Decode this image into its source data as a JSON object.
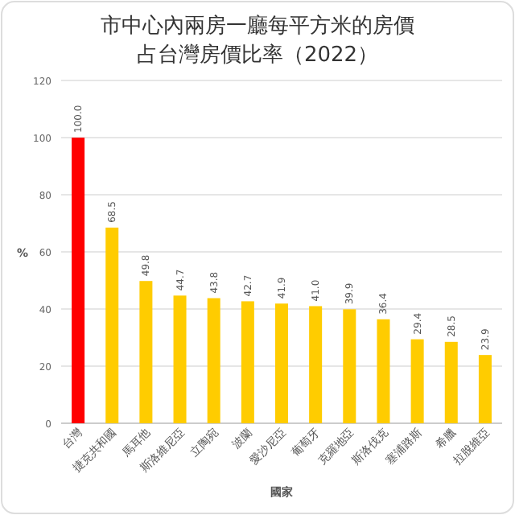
{
  "chart_data": {
    "type": "bar",
    "title": "市中心內兩房一廳每平方米的房價占台灣房價比率（2022）",
    "xlabel": "國家",
    "ylabel": "%",
    "categories": [
      "台灣",
      "捷克共和國",
      "馬耳他",
      "斯洛維尼亞",
      "立陶宛",
      "波蘭",
      "愛沙尼亞",
      "葡萄牙",
      "克羅地亞",
      "斯洛伐克",
      "塞浦路斯",
      "希臘",
      "拉脫維亞"
    ],
    "values": [
      100.0,
      68.5,
      49.8,
      44.7,
      43.8,
      42.7,
      41.9,
      41.0,
      39.9,
      36.4,
      29.4,
      28.5,
      23.9
    ],
    "value_labels": [
      "100.0",
      "68.5",
      "49.8",
      "44.7",
      "43.8",
      "42.7",
      "41.9",
      "41.0",
      "39.9",
      "36.4",
      "29.4",
      "28.5",
      "23.9"
    ],
    "colors": [
      "#ff0000",
      "#ffcc00",
      "#ffcc00",
      "#ffcc00",
      "#ffcc00",
      "#ffcc00",
      "#ffcc00",
      "#ffcc00",
      "#ffcc00",
      "#ffcc00",
      "#ffcc00",
      "#ffcc00",
      "#ffcc00"
    ],
    "ylim": [
      0,
      120
    ],
    "yticks": [
      0,
      20,
      40,
      60,
      80,
      100,
      120
    ],
    "grid": "y"
  }
}
